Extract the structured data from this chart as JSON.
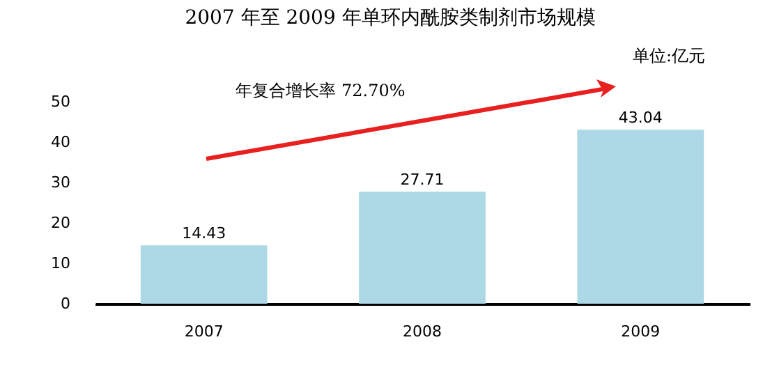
{
  "chart_data": {
    "type": "bar",
    "title": "2007 年至 2009 年单环内酰胺类制剂市场规模",
    "categories": [
      "2007",
      "2008",
      "2009"
    ],
    "values": [
      14.43,
      27.71,
      43.04
    ],
    "color": "#add8e6",
    "ylim": [
      0,
      50
    ],
    "yticks": [
      0,
      10,
      20,
      30,
      40,
      50
    ],
    "grid": false,
    "data_labels": true,
    "annotations": [
      "年复合增长率 72.70%",
      "单位:亿元"
    ]
  }
}
